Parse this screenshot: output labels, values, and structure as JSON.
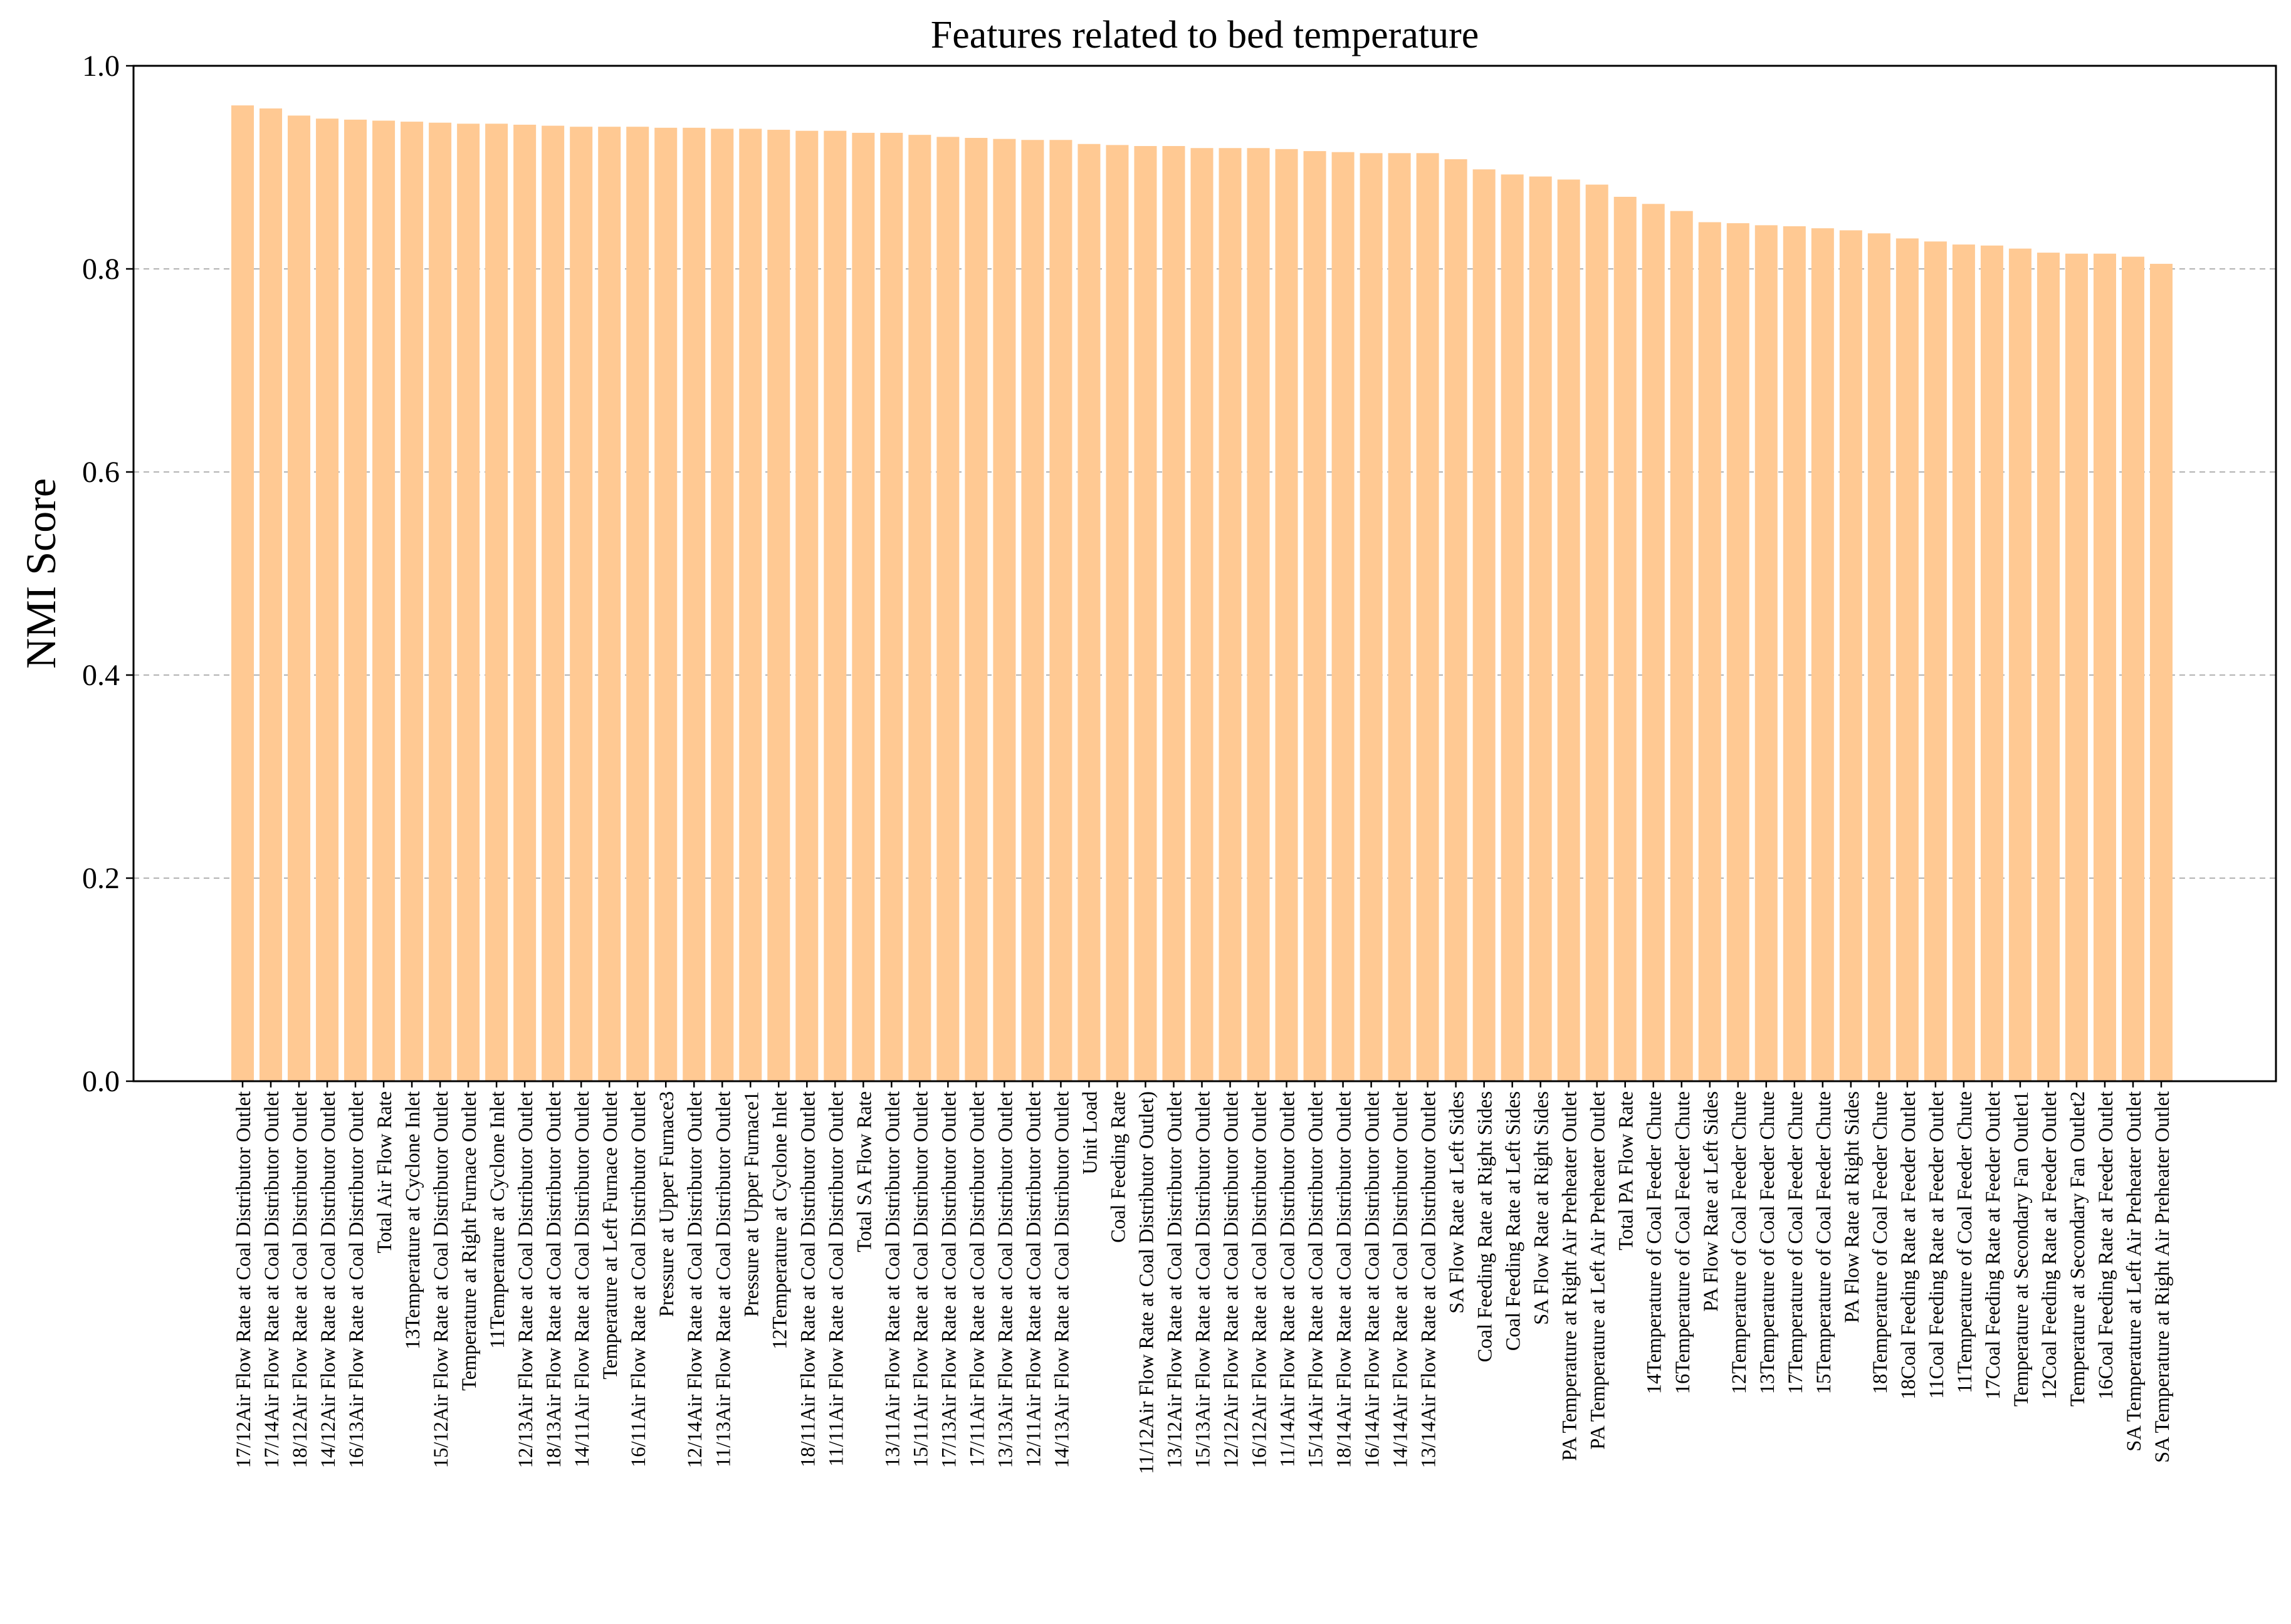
{
  "chart_data": {
    "type": "bar",
    "title": "Features  related to bed temperature",
    "xlabel": "",
    "ylabel": "NMI Score",
    "ylim": [
      0,
      1.0
    ],
    "yticks": [
      "0.0",
      "0.2",
      "0.4",
      "0.6",
      "0.8",
      "1.0"
    ],
    "grid": "horizontal dashed",
    "bar_color": "#ffc993",
    "categories": [
      "17/12Air Flow Rate at Coal Distributor Outlet",
      "17/14Air Flow Rate at Coal Distributor Outlet",
      "18/12Air Flow Rate at Coal Distributor Outlet",
      "14/12Air Flow Rate at Coal Distributor Outlet",
      "16/13Air Flow Rate at Coal Distributor Outlet",
      "Total Air Flow Rate",
      "13Temperature at Cyclone Inlet",
      "15/12Air Flow Rate at Coal Distributor Outlet",
      "Temperature at Right Furnace Outlet",
      "11Temperature at Cyclone Inlet",
      "12/13Air Flow Rate at Coal Distributor Outlet",
      "18/13Air Flow Rate at Coal Distributor Outlet",
      "14/11Air Flow Rate at Coal Distributor Outlet",
      "Temperature at Left Furnace Outlet",
      "16/11Air Flow Rate at Coal Distributor Outlet",
      "Pressure at Upper Furnace3",
      "12/14Air Flow Rate at Coal Distributor Outlet",
      "11/13Air Flow Rate at Coal Distributor Outlet",
      "Pressure at Upper Furnace1",
      "12Temperature at Cyclone Inlet",
      "18/11Air Flow Rate at Coal Distributor Outlet",
      "11/11Air Flow Rate at Coal Distributor Outlet",
      "Total SA Flow Rate",
      "13/11Air Flow Rate at Coal Distributor Outlet",
      "15/11Air Flow Rate at Coal Distributor Outlet",
      "17/13Air Flow Rate at Coal Distributor Outlet",
      "17/11Air Flow Rate at Coal Distributor Outlet",
      "13/13Air Flow Rate at Coal Distributor Outlet",
      "12/11Air Flow Rate at Coal Distributor Outlet",
      "14/13Air Flow Rate at Coal Distributor Outlet",
      "Unit Load",
      "Coal Feeding Rate",
      "11/12Air Flow Rate at Coal Distributor Outlet)",
      "13/12Air Flow Rate at Coal Distributor Outlet",
      "15/13Air Flow Rate at Coal Distributor Outlet",
      "12/12Air Flow Rate at Coal Distributor Outlet",
      "16/12Air Flow Rate at Coal Distributor Outlet",
      "11/14Air Flow Rate at Coal Distributor Outlet",
      "15/14Air Flow Rate at Coal Distributor Outlet",
      "18/14Air Flow Rate at Coal Distributor Outlet",
      "16/14Air Flow Rate at Coal Distributor Outlet",
      "14/14Air Flow Rate at Coal Distributor Outlet",
      "13/14Air Flow Rate at Coal Distributor Outlet",
      "SA Flow Rate at Left Sides",
      "Coal Feeding Rate at Right Sides",
      "Coal Feeding Rate at Left Sides",
      "SA Flow Rate at Right Sides",
      "PA Temperature at Right Air Preheater Outlet",
      "PA Temperature at Left Air Preheater Outlet",
      "Total PA Flow Rate",
      "14Temperature of Coal Feeder Chute",
      "16Temperature of Coal Feeder Chute",
      "PA Flow Rate at Left Sides",
      "12Temperature of Coal Feeder Chute",
      "13Temperature of Coal Feeder Chute",
      "17Temperature of Coal Feeder Chute",
      "15Temperature of Coal Feeder Chute",
      "PA Flow Rate at Right Sides",
      "18Temperature of Coal Feeder Chute",
      "18Coal Feeding Rate at Feeder Outlet",
      "11Coal Feeding Rate at Feeder Outlet",
      "11Temperature of Coal Feeder Chute",
      "17Coal Feeding Rate at Feeder Outlet",
      "Temperature at Secondary Fan Outlet1",
      "12Coal Feeding Rate at Feeder Outlet",
      "Temperature at Secondary Fan Outlet2",
      "16Coal Feeding Rate at Feeder Outlet",
      "SA Temperature at Left Air Preheater Outlet",
      "SA Temperature at Right Air Preheater Outlet"
    ],
    "values": [
      0.961,
      0.958,
      0.951,
      0.948,
      0.947,
      0.946,
      0.945,
      0.944,
      0.943,
      0.943,
      0.942,
      0.941,
      0.94,
      0.94,
      0.94,
      0.939,
      0.939,
      0.938,
      0.938,
      0.937,
      0.936,
      0.936,
      0.934,
      0.934,
      0.932,
      0.93,
      0.929,
      0.928,
      0.927,
      0.927,
      0.923,
      0.922,
      0.921,
      0.921,
      0.919,
      0.919,
      0.919,
      0.918,
      0.916,
      0.915,
      0.914,
      0.914,
      0.914,
      0.908,
      0.898,
      0.893,
      0.891,
      0.888,
      0.883,
      0.871,
      0.864,
      0.857,
      0.846,
      0.845,
      0.843,
      0.842,
      0.84,
      0.838,
      0.835,
      0.83,
      0.827,
      0.824,
      0.823,
      0.82,
      0.816,
      0.815,
      0.815,
      0.812,
      0.805
    ]
  }
}
